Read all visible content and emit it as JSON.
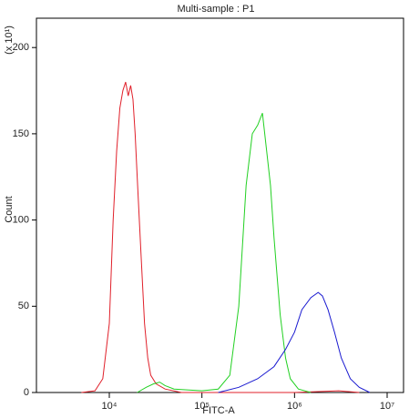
{
  "chart_data": {
    "type": "line",
    "title": "Multi-sample : P1",
    "y_label": "Count",
    "y_multiplier": "(x 10¹)",
    "x_label": "FITC-A",
    "xscale": "log",
    "xlim": [
      1633,
      15030000
    ],
    "ylim": [
      0,
      217
    ],
    "xticks": [
      {
        "value": 10000,
        "label": "10⁴"
      },
      {
        "value": 100000,
        "label": "10⁵"
      },
      {
        "value": 1000000,
        "label": "10⁶"
      },
      {
        "value": 10000000,
        "label": "10⁷"
      }
    ],
    "yticks": [
      0,
      50,
      100,
      150,
      200
    ],
    "series": [
      {
        "color": "#e0202a",
        "x": [
          5000,
          7000,
          8500,
          10000,
          11000,
          12000,
          13000,
          14000,
          15000,
          16000,
          17000,
          18000,
          19000,
          20000,
          22000,
          24000,
          26000,
          28000,
          32000,
          40000,
          60000,
          1000000,
          3000000,
          5000000
        ],
        "values": [
          0,
          1,
          8,
          40,
          100,
          140,
          165,
          175,
          180,
          172,
          178,
          170,
          150,
          125,
          80,
          40,
          20,
          10,
          5,
          2,
          0,
          0,
          1,
          0
        ]
      },
      {
        "color": "#22d022",
        "x": [
          20000,
          25000,
          30000,
          35000,
          40000,
          50000,
          100000,
          150000,
          200000,
          250000,
          300000,
          350000,
          400000,
          450000,
          500000,
          550000,
          600000,
          700000,
          800000,
          900000,
          1100000,
          1500000
        ],
        "values": [
          0,
          3,
          5,
          6,
          4,
          2,
          1,
          2,
          10,
          50,
          120,
          150,
          155,
          162,
          140,
          120,
          90,
          45,
          20,
          8,
          2,
          0
        ]
      },
      {
        "color": "#1a1ad0",
        "x": [
          150000,
          250000,
          400000,
          600000,
          800000,
          1000000,
          1200000,
          1500000,
          1800000,
          2000000,
          2300000,
          2700000,
          3200000,
          4000000,
          5000000,
          6500000
        ],
        "values": [
          0,
          3,
          8,
          15,
          25,
          35,
          48,
          55,
          58,
          56,
          48,
          35,
          20,
          8,
          3,
          0
        ]
      }
    ]
  }
}
